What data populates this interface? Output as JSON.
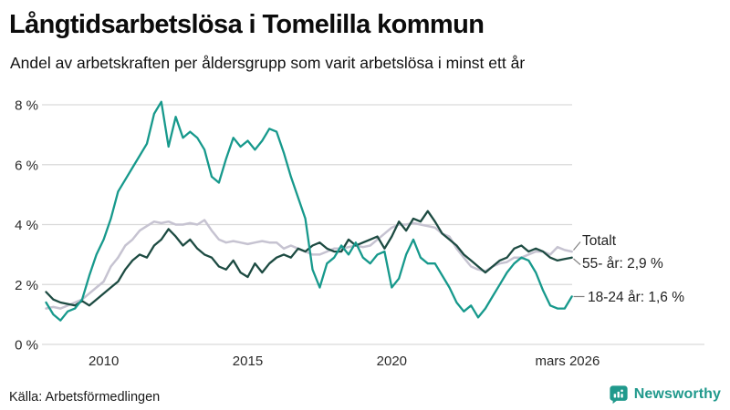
{
  "header": {
    "title": "Långtidsarbetslösa i Tomelilla kommun",
    "subtitle": "Andel av arbetskraften per åldersgrupp som varit arbetslösa i minst ett år"
  },
  "footer": {
    "source": "Källa: Arbetsförmedlingen",
    "brand": "Newsworthy"
  },
  "colors": {
    "teal": "#17998c",
    "dark_green": "#1d4b42",
    "gray": "#c6c3d1",
    "grid": "#d9d9d9",
    "tick_text": "#2a2a2a",
    "annotation_text": "#222222",
    "leader": "#808080",
    "brand_teal": "#20998c"
  },
  "chart_data": {
    "type": "line",
    "title": "Långtidsarbetslösa i Tomelilla kommun",
    "subtitle": "Andel av arbetskraften per åldersgrupp som varit arbetslösa i minst ett år",
    "x_start": 2008.0,
    "x_step": 0.25,
    "x_range": [
      2008.0,
      2026.25
    ],
    "ylim": [
      0,
      8.6
    ],
    "grid": true,
    "legend_position": "end-of-line-labels",
    "yticks": [
      {
        "v": 0,
        "label": "0 %"
      },
      {
        "v": 2,
        "label": "2 %"
      },
      {
        "v": 4,
        "label": "4 %"
      },
      {
        "v": 6,
        "label": "6 %"
      },
      {
        "v": 8,
        "label": "8 %"
      }
    ],
    "xticks": [
      {
        "year": 2010,
        "label": "2010"
      },
      {
        "year": 2015,
        "label": "2015"
      },
      {
        "year": 2020,
        "label": "2020"
      },
      {
        "year": 2026.1,
        "label": "mars 2026"
      }
    ],
    "series": [
      {
        "name": "Totalt",
        "color_key": "gray",
        "end_label": "Totalt",
        "values": [
          1.2,
          1.25,
          1.2,
          1.3,
          1.4,
          1.5,
          1.7,
          1.9,
          2.1,
          2.6,
          2.9,
          3.3,
          3.5,
          3.8,
          3.95,
          4.1,
          4.05,
          4.1,
          4.0,
          4.0,
          4.05,
          4.0,
          4.15,
          3.8,
          3.5,
          3.4,
          3.45,
          3.4,
          3.35,
          3.4,
          3.45,
          3.4,
          3.4,
          3.2,
          3.3,
          3.2,
          3.1,
          3.0,
          3.0,
          3.1,
          3.2,
          3.2,
          3.25,
          3.3,
          3.25,
          3.3,
          3.5,
          3.7,
          3.9,
          4.0,
          4.0,
          4.05,
          4.0,
          3.95,
          3.9,
          3.7,
          3.6,
          3.2,
          2.9,
          2.6,
          2.5,
          2.45,
          2.6,
          2.7,
          2.75,
          2.9,
          2.9,
          3.0,
          3.1,
          3.1,
          3.0,
          3.25,
          3.15,
          3.1
        ]
      },
      {
        "name": "55- år",
        "color_key": "dark_green",
        "end_label": "55- år: 2,9 %",
        "end_value": "2,9 %",
        "values": [
          1.75,
          1.5,
          1.4,
          1.35,
          1.3,
          1.45,
          1.3,
          1.5,
          1.7,
          1.9,
          2.1,
          2.5,
          2.8,
          3.0,
          2.9,
          3.3,
          3.5,
          3.85,
          3.6,
          3.3,
          3.5,
          3.2,
          3.0,
          2.9,
          2.6,
          2.5,
          2.8,
          2.4,
          2.25,
          2.7,
          2.4,
          2.7,
          2.9,
          3.0,
          2.9,
          3.2,
          3.1,
          3.3,
          3.4,
          3.2,
          3.1,
          3.1,
          3.5,
          3.3,
          3.4,
          3.5,
          3.6,
          3.2,
          3.6,
          4.1,
          3.8,
          4.2,
          4.1,
          4.45,
          4.1,
          3.7,
          3.5,
          3.3,
          3.0,
          2.8,
          2.6,
          2.4,
          2.6,
          2.8,
          2.9,
          3.2,
          3.3,
          3.1,
          3.2,
          3.1,
          2.9,
          2.8,
          2.85,
          2.9
        ]
      },
      {
        "name": "18-24 år",
        "color_key": "teal",
        "end_label": "18-24 år: 1,6 %",
        "end_value": "1,6 %",
        "values": [
          1.4,
          1.0,
          0.8,
          1.1,
          1.2,
          1.5,
          2.3,
          3.0,
          3.5,
          4.2,
          5.1,
          5.5,
          5.9,
          6.3,
          6.7,
          7.7,
          8.1,
          6.6,
          7.6,
          6.9,
          7.1,
          6.9,
          6.5,
          5.6,
          5.4,
          6.2,
          6.9,
          6.6,
          6.8,
          6.5,
          6.8,
          7.2,
          7.1,
          6.4,
          5.6,
          4.9,
          4.2,
          2.5,
          1.9,
          2.7,
          2.9,
          3.3,
          3.0,
          3.4,
          2.9,
          2.7,
          3.0,
          3.1,
          1.9,
          2.2,
          3.0,
          3.5,
          2.9,
          2.7,
          2.7,
          2.3,
          1.9,
          1.4,
          1.1,
          1.3,
          0.9,
          1.2,
          1.6,
          2.0,
          2.4,
          2.7,
          2.9,
          2.8,
          2.4,
          1.8,
          1.3,
          1.2,
          1.2,
          1.6
        ]
      }
    ]
  }
}
